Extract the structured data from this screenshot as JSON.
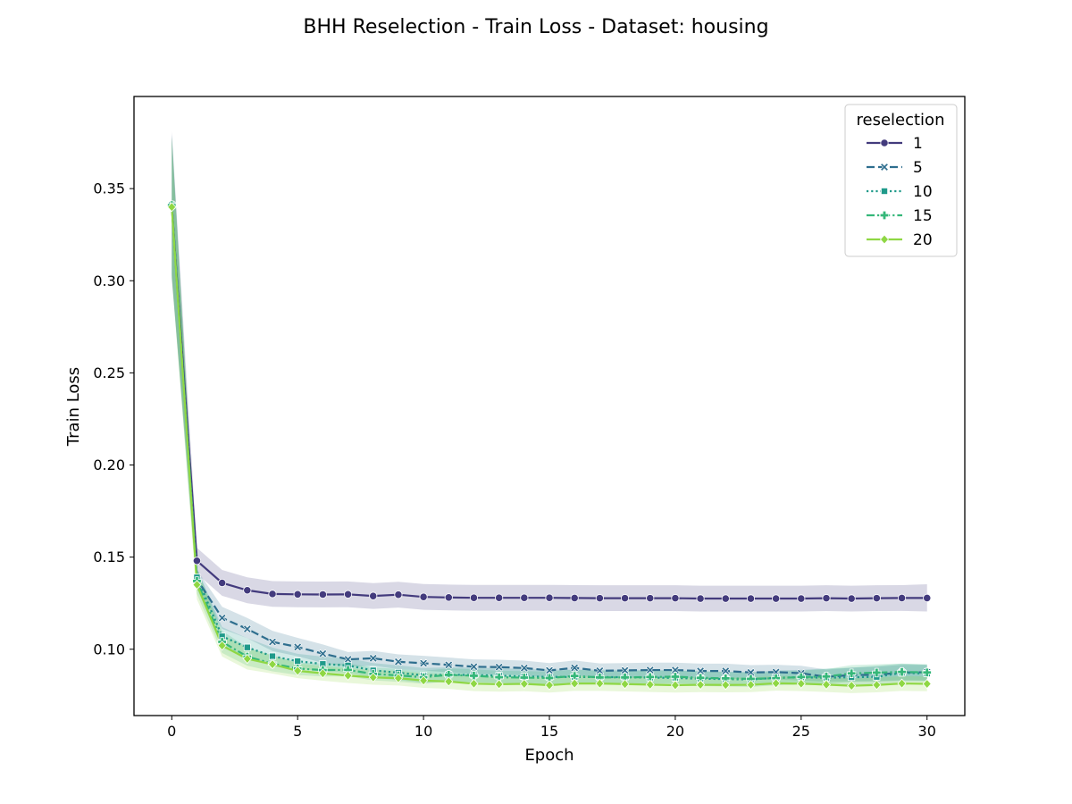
{
  "chart_data": {
    "type": "line",
    "title": "BHH Reselection - Train Loss - Dataset: housing",
    "xlabel": "Epoch",
    "ylabel": "Train Loss",
    "xlim": [
      -1.5,
      31.5
    ],
    "ylim": [
      0.064,
      0.4
    ],
    "xticks": [
      0,
      5,
      10,
      15,
      20,
      25,
      30
    ],
    "yticks": [
      0.1,
      0.15,
      0.2,
      0.25,
      0.3,
      0.35
    ],
    "ytick_labels": [
      "0.10",
      "0.15",
      "0.20",
      "0.25",
      "0.30",
      "0.35"
    ],
    "grid": false,
    "legend": {
      "title": "reselection",
      "placement": "top-right",
      "entries": [
        "1",
        "5",
        "10",
        "15",
        "20"
      ]
    },
    "x": [
      0,
      1,
      2,
      3,
      4,
      5,
      6,
      7,
      8,
      9,
      10,
      11,
      12,
      13,
      14,
      15,
      16,
      17,
      18,
      19,
      20,
      21,
      22,
      23,
      24,
      25,
      26,
      27,
      28,
      29,
      30
    ],
    "series": [
      {
        "name": "1",
        "color": "#433b7d",
        "dash": "solid",
        "marker": "circle",
        "values": [
          0.341,
          0.148,
          0.136,
          0.132,
          0.13,
          0.1298,
          0.1297,
          0.1298,
          0.1289,
          0.1296,
          0.1284,
          0.1281,
          0.1279,
          0.1279,
          0.1279,
          0.1279,
          0.1278,
          0.1277,
          0.1277,
          0.1277,
          0.1277,
          0.1275,
          0.1275,
          0.1275,
          0.1275,
          0.1275,
          0.1277,
          0.1275,
          0.1277,
          0.1278,
          0.1278
        ],
        "lower": [
          0.301,
          0.141,
          0.129,
          0.125,
          0.123,
          0.1228,
          0.1227,
          0.1228,
          0.1219,
          0.1226,
          0.1214,
          0.1211,
          0.1209,
          0.1209,
          0.1209,
          0.1209,
          0.1208,
          0.1207,
          0.1207,
          0.1207,
          0.1207,
          0.1205,
          0.1205,
          0.1205,
          0.1205,
          0.1205,
          0.1207,
          0.1205,
          0.1207,
          0.1208,
          0.1205
        ],
        "upper": [
          0.381,
          0.155,
          0.143,
          0.139,
          0.137,
          0.1368,
          0.1367,
          0.1368,
          0.1359,
          0.1366,
          0.1354,
          0.1351,
          0.1349,
          0.1349,
          0.1349,
          0.1349,
          0.1348,
          0.1347,
          0.1347,
          0.1347,
          0.1347,
          0.1345,
          0.1345,
          0.1345,
          0.1345,
          0.1345,
          0.1347,
          0.1345,
          0.1347,
          0.1348,
          0.1353
        ]
      },
      {
        "name": "5",
        "color": "#2e6e8e",
        "dash": "dashed",
        "marker": "x",
        "values": [
          0.341,
          0.138,
          0.117,
          0.111,
          0.104,
          0.1012,
          0.0976,
          0.0945,
          0.0951,
          0.0932,
          0.0924,
          0.0915,
          0.0905,
          0.0903,
          0.0898,
          0.0885,
          0.0899,
          0.0883,
          0.0885,
          0.0887,
          0.0887,
          0.0882,
          0.0882,
          0.0874,
          0.0876,
          0.087,
          0.085,
          0.086,
          0.0861,
          0.0874,
          0.0875
        ],
        "lower": [
          0.302,
          0.133,
          0.111,
          0.106,
          0.099,
          0.0962,
          0.0926,
          0.0905,
          0.0911,
          0.0892,
          0.0884,
          0.0875,
          0.0865,
          0.0863,
          0.0858,
          0.0845,
          0.0859,
          0.0843,
          0.0845,
          0.0847,
          0.0847,
          0.0842,
          0.0842,
          0.0834,
          0.0836,
          0.083,
          0.0825,
          0.0825,
          0.0825,
          0.083,
          0.083
        ],
        "upper": [
          0.38,
          0.143,
          0.123,
          0.117,
          0.11,
          0.1062,
          0.1026,
          0.0985,
          0.0991,
          0.0972,
          0.0964,
          0.0955,
          0.0945,
          0.0943,
          0.0938,
          0.0925,
          0.0939,
          0.0923,
          0.0925,
          0.0927,
          0.0927,
          0.0922,
          0.0922,
          0.0914,
          0.0916,
          0.091,
          0.089,
          0.09,
          0.0905,
          0.0915,
          0.0915
        ]
      },
      {
        "name": "10",
        "color": "#1f9a8a",
        "dash": "dotted",
        "marker": "square",
        "values": [
          0.341,
          0.139,
          0.107,
          0.101,
          0.0962,
          0.0935,
          0.092,
          0.0912,
          0.0885,
          0.0873,
          0.0858,
          0.0862,
          0.086,
          0.0857,
          0.0852,
          0.085,
          0.0849,
          0.0849,
          0.0848,
          0.0846,
          0.0844,
          0.084,
          0.0838,
          0.0836,
          0.0845,
          0.0848,
          0.0845,
          0.0848,
          0.085,
          0.0872,
          0.0868
        ],
        "lower": [
          0.303,
          0.133,
          0.101,
          0.095,
          0.0915,
          0.0895,
          0.088,
          0.0872,
          0.0845,
          0.0833,
          0.0818,
          0.0822,
          0.082,
          0.0817,
          0.0812,
          0.081,
          0.0809,
          0.0809,
          0.0808,
          0.0806,
          0.0804,
          0.08,
          0.0798,
          0.0796,
          0.0805,
          0.0808,
          0.0805,
          0.0808,
          0.081,
          0.0822,
          0.0822
        ],
        "upper": [
          0.379,
          0.144,
          0.112,
          0.106,
          0.1009,
          0.0975,
          0.096,
          0.0952,
          0.0925,
          0.0913,
          0.0898,
          0.0902,
          0.09,
          0.0897,
          0.0892,
          0.089,
          0.0889,
          0.0889,
          0.0888,
          0.0886,
          0.0884,
          0.088,
          0.0878,
          0.0876,
          0.0885,
          0.0888,
          0.0895,
          0.09,
          0.091,
          0.0922,
          0.0915
        ]
      },
      {
        "name": "15",
        "color": "#35b779",
        "dash": "dashdot",
        "marker": "plus",
        "values": [
          0.341,
          0.137,
          0.104,
          0.096,
          0.0922,
          0.0895,
          0.0887,
          0.0888,
          0.0866,
          0.0858,
          0.0848,
          0.0861,
          0.0856,
          0.0848,
          0.0846,
          0.0844,
          0.0855,
          0.0847,
          0.0847,
          0.0849,
          0.0851,
          0.0845,
          0.0842,
          0.0839,
          0.0843,
          0.0849,
          0.0852,
          0.0869,
          0.0873,
          0.0877,
          0.0874
        ],
        "lower": [
          0.304,
          0.13,
          0.098,
          0.091,
          0.088,
          0.086,
          0.0852,
          0.0853,
          0.0831,
          0.0823,
          0.0813,
          0.0826,
          0.0821,
          0.0813,
          0.0811,
          0.0809,
          0.082,
          0.0812,
          0.0812,
          0.0814,
          0.0816,
          0.081,
          0.0807,
          0.0804,
          0.0808,
          0.0814,
          0.0812,
          0.0824,
          0.0828,
          0.0832,
          0.0829
        ],
        "upper": [
          0.378,
          0.144,
          0.11,
          0.101,
          0.0964,
          0.093,
          0.0922,
          0.0923,
          0.0901,
          0.0893,
          0.0883,
          0.0896,
          0.0891,
          0.0883,
          0.0881,
          0.0879,
          0.089,
          0.0882,
          0.0882,
          0.0884,
          0.0886,
          0.088,
          0.0877,
          0.0874,
          0.0878,
          0.0884,
          0.0892,
          0.0914,
          0.0918,
          0.0922,
          0.0919
        ]
      },
      {
        "name": "20",
        "color": "#8fd744",
        "dash": "solid",
        "marker": "diamond",
        "values": [
          0.34,
          0.135,
          0.102,
          0.0948,
          0.0918,
          0.0883,
          0.0869,
          0.0857,
          0.0847,
          0.0843,
          0.083,
          0.0825,
          0.0813,
          0.081,
          0.0812,
          0.0805,
          0.0814,
          0.0814,
          0.0811,
          0.0808,
          0.0805,
          0.0807,
          0.0806,
          0.0807,
          0.0815,
          0.0813,
          0.0808,
          0.0802,
          0.0806,
          0.0814,
          0.0812
        ],
        "lower": [
          0.302,
          0.127,
          0.096,
          0.089,
          0.0868,
          0.0843,
          0.0829,
          0.0817,
          0.0807,
          0.0803,
          0.079,
          0.0785,
          0.0773,
          0.077,
          0.0772,
          0.0765,
          0.0774,
          0.0774,
          0.0771,
          0.0768,
          0.0765,
          0.0767,
          0.0766,
          0.0767,
          0.0775,
          0.0773,
          0.0768,
          0.0762,
          0.0766,
          0.0774,
          0.0772
        ],
        "upper": [
          0.378,
          0.143,
          0.108,
          0.1006,
          0.0968,
          0.0923,
          0.0909,
          0.0897,
          0.0887,
          0.0883,
          0.087,
          0.0865,
          0.0853,
          0.085,
          0.0852,
          0.0845,
          0.0854,
          0.0854,
          0.0851,
          0.0848,
          0.0845,
          0.0847,
          0.0846,
          0.0847,
          0.0855,
          0.0853,
          0.0848,
          0.0842,
          0.0846,
          0.0854,
          0.0852
        ]
      }
    ]
  }
}
